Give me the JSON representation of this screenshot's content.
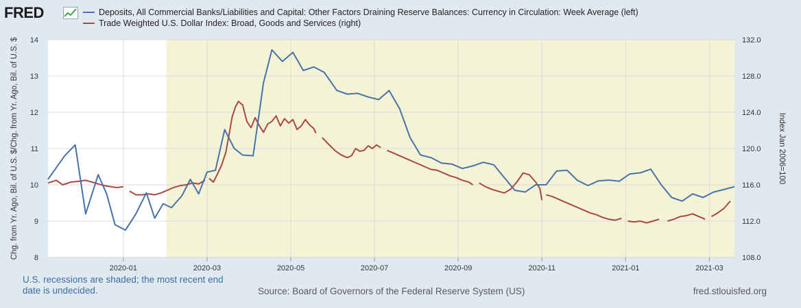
{
  "header": {
    "logo_text": "FRED",
    "logo_icon": "chart-line-icon"
  },
  "legend": {
    "items": [
      {
        "label": "Deposits, All Commercial Banks/Liabilities and Capital: Other Factors Draining Reserve Balances: Currency in Circulation: Week Average (left)",
        "color": "#4572a7"
      },
      {
        "label": "Trade Weighted U.S. Dollar Index: Broad, Goods and Services (right)",
        "color": "#aa4643"
      }
    ]
  },
  "footer": {
    "note": "U.S. recessions are shaded; the most recent end date is undecided.",
    "source": "Source: Board of Governors of the Federal Reserve System (US)",
    "site": "fred.stlouisfed.org"
  },
  "chart_data": {
    "type": "line",
    "title": "",
    "left_axis": {
      "label": "Chg. from Yr. Ago, Bil. of U.S. $/Chg. from Yr. Ago, Bil. of U.S. $",
      "ylim": [
        8,
        14
      ],
      "ticks": [
        8,
        9,
        10,
        11,
        12,
        13,
        14
      ],
      "tick_labels": [
        "8",
        "9",
        "10",
        "11",
        "12",
        "13",
        "14"
      ]
    },
    "right_axis": {
      "label": "Index Jan 2006=100",
      "ylim": [
        108,
        132
      ],
      "ticks": [
        108,
        112,
        116,
        120,
        124,
        128,
        132
      ],
      "tick_labels": [
        "108.0",
        "112.0",
        "116.0",
        "120.0",
        "124.0",
        "128.0",
        "132.0"
      ]
    },
    "x_axis": {
      "range_months": [
        -1.8,
        14.6
      ],
      "ticks": [
        {
          "label": "2020-01",
          "t": 0
        },
        {
          "label": "2020-03",
          "t": 2
        },
        {
          "label": "2020-05",
          "t": 4
        },
        {
          "label": "2020-07",
          "t": 6
        },
        {
          "label": "2020-09",
          "t": 8
        },
        {
          "label": "2020-11",
          "t": 10
        },
        {
          "label": "2021-01",
          "t": 12
        },
        {
          "label": "2021-03",
          "t": 14
        }
      ]
    },
    "grid": true,
    "recession": {
      "start_t": 1.03,
      "end_t": 14.6,
      "color": "#f5f3d6"
    },
    "series": [
      {
        "name": "Currency in Circulation: Week Average (left)",
        "axis": "left",
        "color": "#4572a7",
        "points": [
          [
            -1.8,
            10.15
          ],
          [
            -1.4,
            10.8
          ],
          [
            -1.15,
            11.1
          ],
          [
            -0.9,
            9.2
          ],
          [
            -0.6,
            10.28
          ],
          [
            -0.4,
            9.75
          ],
          [
            -0.2,
            8.9
          ],
          [
            0.05,
            8.75
          ],
          [
            0.3,
            9.2
          ],
          [
            0.55,
            9.78
          ],
          [
            0.75,
            9.08
          ],
          [
            0.95,
            9.48
          ],
          [
            1.15,
            9.37
          ],
          [
            1.4,
            9.7
          ],
          [
            1.6,
            10.15
          ],
          [
            1.8,
            9.75
          ],
          [
            2.0,
            10.35
          ],
          [
            2.2,
            10.4
          ],
          [
            2.42,
            11.52
          ],
          [
            2.65,
            11.0
          ],
          [
            2.85,
            10.82
          ],
          [
            3.1,
            10.8
          ],
          [
            3.35,
            12.82
          ],
          [
            3.55,
            13.72
          ],
          [
            3.8,
            13.4
          ],
          [
            4.05,
            13.65
          ],
          [
            4.3,
            13.15
          ],
          [
            4.55,
            13.25
          ],
          [
            4.8,
            13.1
          ],
          [
            5.1,
            12.6
          ],
          [
            5.35,
            12.5
          ],
          [
            5.6,
            12.52
          ],
          [
            5.85,
            12.42
          ],
          [
            6.1,
            12.35
          ],
          [
            6.35,
            12.6
          ],
          [
            6.6,
            12.1
          ],
          [
            6.85,
            11.3
          ],
          [
            7.1,
            10.82
          ],
          [
            7.35,
            10.75
          ],
          [
            7.6,
            10.6
          ],
          [
            7.85,
            10.57
          ],
          [
            8.1,
            10.45
          ],
          [
            8.35,
            10.52
          ],
          [
            8.6,
            10.62
          ],
          [
            8.85,
            10.55
          ],
          [
            9.1,
            10.2
          ],
          [
            9.35,
            9.85
          ],
          [
            9.6,
            9.8
          ],
          [
            9.85,
            10.0
          ],
          [
            10.1,
            10.0
          ],
          [
            10.35,
            10.38
          ],
          [
            10.6,
            10.4
          ],
          [
            10.85,
            10.12
          ],
          [
            11.1,
            9.98
          ],
          [
            11.35,
            10.11
          ],
          [
            11.6,
            10.13
          ],
          [
            11.85,
            10.1
          ],
          [
            12.1,
            10.3
          ],
          [
            12.35,
            10.33
          ],
          [
            12.6,
            10.43
          ],
          [
            12.85,
            10.0
          ],
          [
            13.1,
            9.65
          ],
          [
            13.35,
            9.55
          ],
          [
            13.6,
            9.75
          ],
          [
            13.85,
            9.65
          ],
          [
            14.1,
            9.8
          ],
          [
            14.35,
            9.87
          ],
          [
            14.6,
            9.95
          ],
          [
            14.85,
            10.0
          ],
          [
            15.1,
            10.42
          ],
          [
            15.35,
            10.43
          ]
        ]
      },
      {
        "name": "Trade Weighted U.S. Dollar Index (right)",
        "axis": "right",
        "color": "#aa4643",
        "segments": [
          [
            [
              -1.8,
              116.2
            ],
            [
              -1.6,
              116.5
            ],
            [
              -1.45,
              116.0
            ],
            [
              -1.25,
              116.3
            ],
            [
              -1.05,
              116.4
            ],
            [
              -0.9,
              116.5
            ],
            [
              -0.75,
              116.3
            ],
            [
              -0.6,
              116.1
            ],
            [
              -0.45,
              115.9
            ],
            [
              -0.3,
              115.8
            ],
            [
              -0.15,
              115.7
            ],
            [
              0.0,
              115.8
            ]
          ],
          [
            [
              0.15,
              115.3
            ],
            [
              0.3,
              114.9
            ],
            [
              0.45,
              114.9
            ],
            [
              0.6,
              115.0
            ],
            [
              0.75,
              114.9
            ],
            [
              0.9,
              115.1
            ],
            [
              1.05,
              115.4
            ],
            [
              1.2,
              115.7
            ],
            [
              1.35,
              115.9
            ],
            [
              1.5,
              116.0
            ],
            [
              1.65,
              116.2
            ],
            [
              1.8,
              116.1
            ],
            [
              1.95,
              116.5
            ]
          ],
          [
            [
              2.05,
              116.7
            ],
            [
              2.15,
              116.3
            ],
            [
              2.25,
              117.2
            ],
            [
              2.35,
              118.2
            ],
            [
              2.45,
              119.6
            ],
            [
              2.52,
              121.4
            ],
            [
              2.6,
              123.5
            ],
            [
              2.68,
              124.6
            ],
            [
              2.75,
              125.2
            ],
            [
              2.85,
              124.8
            ],
            [
              2.95,
              123.0
            ],
            [
              3.05,
              122.3
            ],
            [
              3.15,
              123.4
            ],
            [
              3.25,
              122.5
            ],
            [
              3.35,
              121.8
            ],
            [
              3.45,
              122.7
            ],
            [
              3.55,
              123.0
            ],
            [
              3.65,
              123.6
            ],
            [
              3.75,
              122.5
            ],
            [
              3.85,
              123.3
            ],
            [
              3.95,
              122.8
            ],
            [
              4.05,
              123.2
            ],
            [
              4.15,
              122.1
            ],
            [
              4.25,
              122.5
            ],
            [
              4.35,
              123.2
            ],
            [
              4.45,
              122.6
            ],
            [
              4.55,
              122.2
            ],
            [
              4.6,
              121.7
            ]
          ],
          [
            [
              4.75,
              121.2
            ],
            [
              4.9,
              120.5
            ],
            [
              5.05,
              119.8
            ],
            [
              5.2,
              119.3
            ],
            [
              5.35,
              119.0
            ],
            [
              5.45,
              119.2
            ],
            [
              5.55,
              120.0
            ],
            [
              5.65,
              119.7
            ],
            [
              5.75,
              119.8
            ],
            [
              5.85,
              120.3
            ],
            [
              5.95,
              120.0
            ],
            [
              6.05,
              120.4
            ],
            [
              6.15,
              120.1
            ]
          ],
          [
            [
              6.3,
              119.8
            ],
            [
              6.45,
              119.5
            ],
            [
              6.6,
              119.2
            ],
            [
              6.75,
              118.9
            ],
            [
              6.9,
              118.6
            ],
            [
              7.05,
              118.3
            ],
            [
              7.2,
              118.0
            ],
            [
              7.35,
              117.7
            ],
            [
              7.5,
              117.6
            ],
            [
              7.65,
              117.3
            ],
            [
              7.8,
              117.0
            ],
            [
              7.95,
              116.8
            ],
            [
              8.1,
              116.5
            ],
            [
              8.25,
              116.3
            ],
            [
              8.35,
              116.0
            ]
          ],
          [
            [
              8.5,
              116.2
            ],
            [
              8.65,
              115.8
            ],
            [
              8.8,
              115.5
            ],
            [
              8.95,
              115.3
            ],
            [
              9.1,
              115.1
            ],
            [
              9.25,
              115.5
            ],
            [
              9.4,
              116.3
            ],
            [
              9.55,
              117.3
            ],
            [
              9.7,
              117.1
            ],
            [
              9.85,
              116.3
            ],
            [
              9.95,
              115.6
            ],
            [
              10.0,
              114.3
            ]
          ],
          [
            [
              10.1,
              114.9
            ],
            [
              10.25,
              114.7
            ],
            [
              10.4,
              114.4
            ],
            [
              10.55,
              114.1
            ],
            [
              10.7,
              113.8
            ],
            [
              10.85,
              113.5
            ],
            [
              11.0,
              113.2
            ],
            [
              11.15,
              112.9
            ],
            [
              11.3,
              112.7
            ],
            [
              11.45,
              112.4
            ],
            [
              11.6,
              112.2
            ],
            [
              11.75,
              112.1
            ],
            [
              11.9,
              112.3
            ]
          ],
          [
            [
              12.05,
              112.0
            ],
            [
              12.2,
              111.9
            ],
            [
              12.35,
              112.0
            ],
            [
              12.5,
              111.8
            ],
            [
              12.65,
              112.0
            ],
            [
              12.8,
              112.2
            ]
          ],
          [
            [
              13.0,
              112.0
            ],
            [
              13.15,
              112.2
            ],
            [
              13.3,
              112.5
            ],
            [
              13.45,
              112.6
            ],
            [
              13.6,
              112.8
            ],
            [
              13.75,
              112.5
            ],
            [
              13.9,
              112.2
            ]
          ],
          [
            [
              14.05,
              112.5
            ],
            [
              14.2,
              112.9
            ],
            [
              14.35,
              113.4
            ],
            [
              14.5,
              114.2
            ],
            [
              14.65,
              113.6
            ],
            [
              14.8,
              113.3
            ],
            [
              14.95,
              113.5
            ],
            [
              15.1,
              113.8
            ],
            [
              15.25,
              114.2
            ],
            [
              15.4,
              114.5
            ]
          ]
        ]
      }
    ]
  }
}
